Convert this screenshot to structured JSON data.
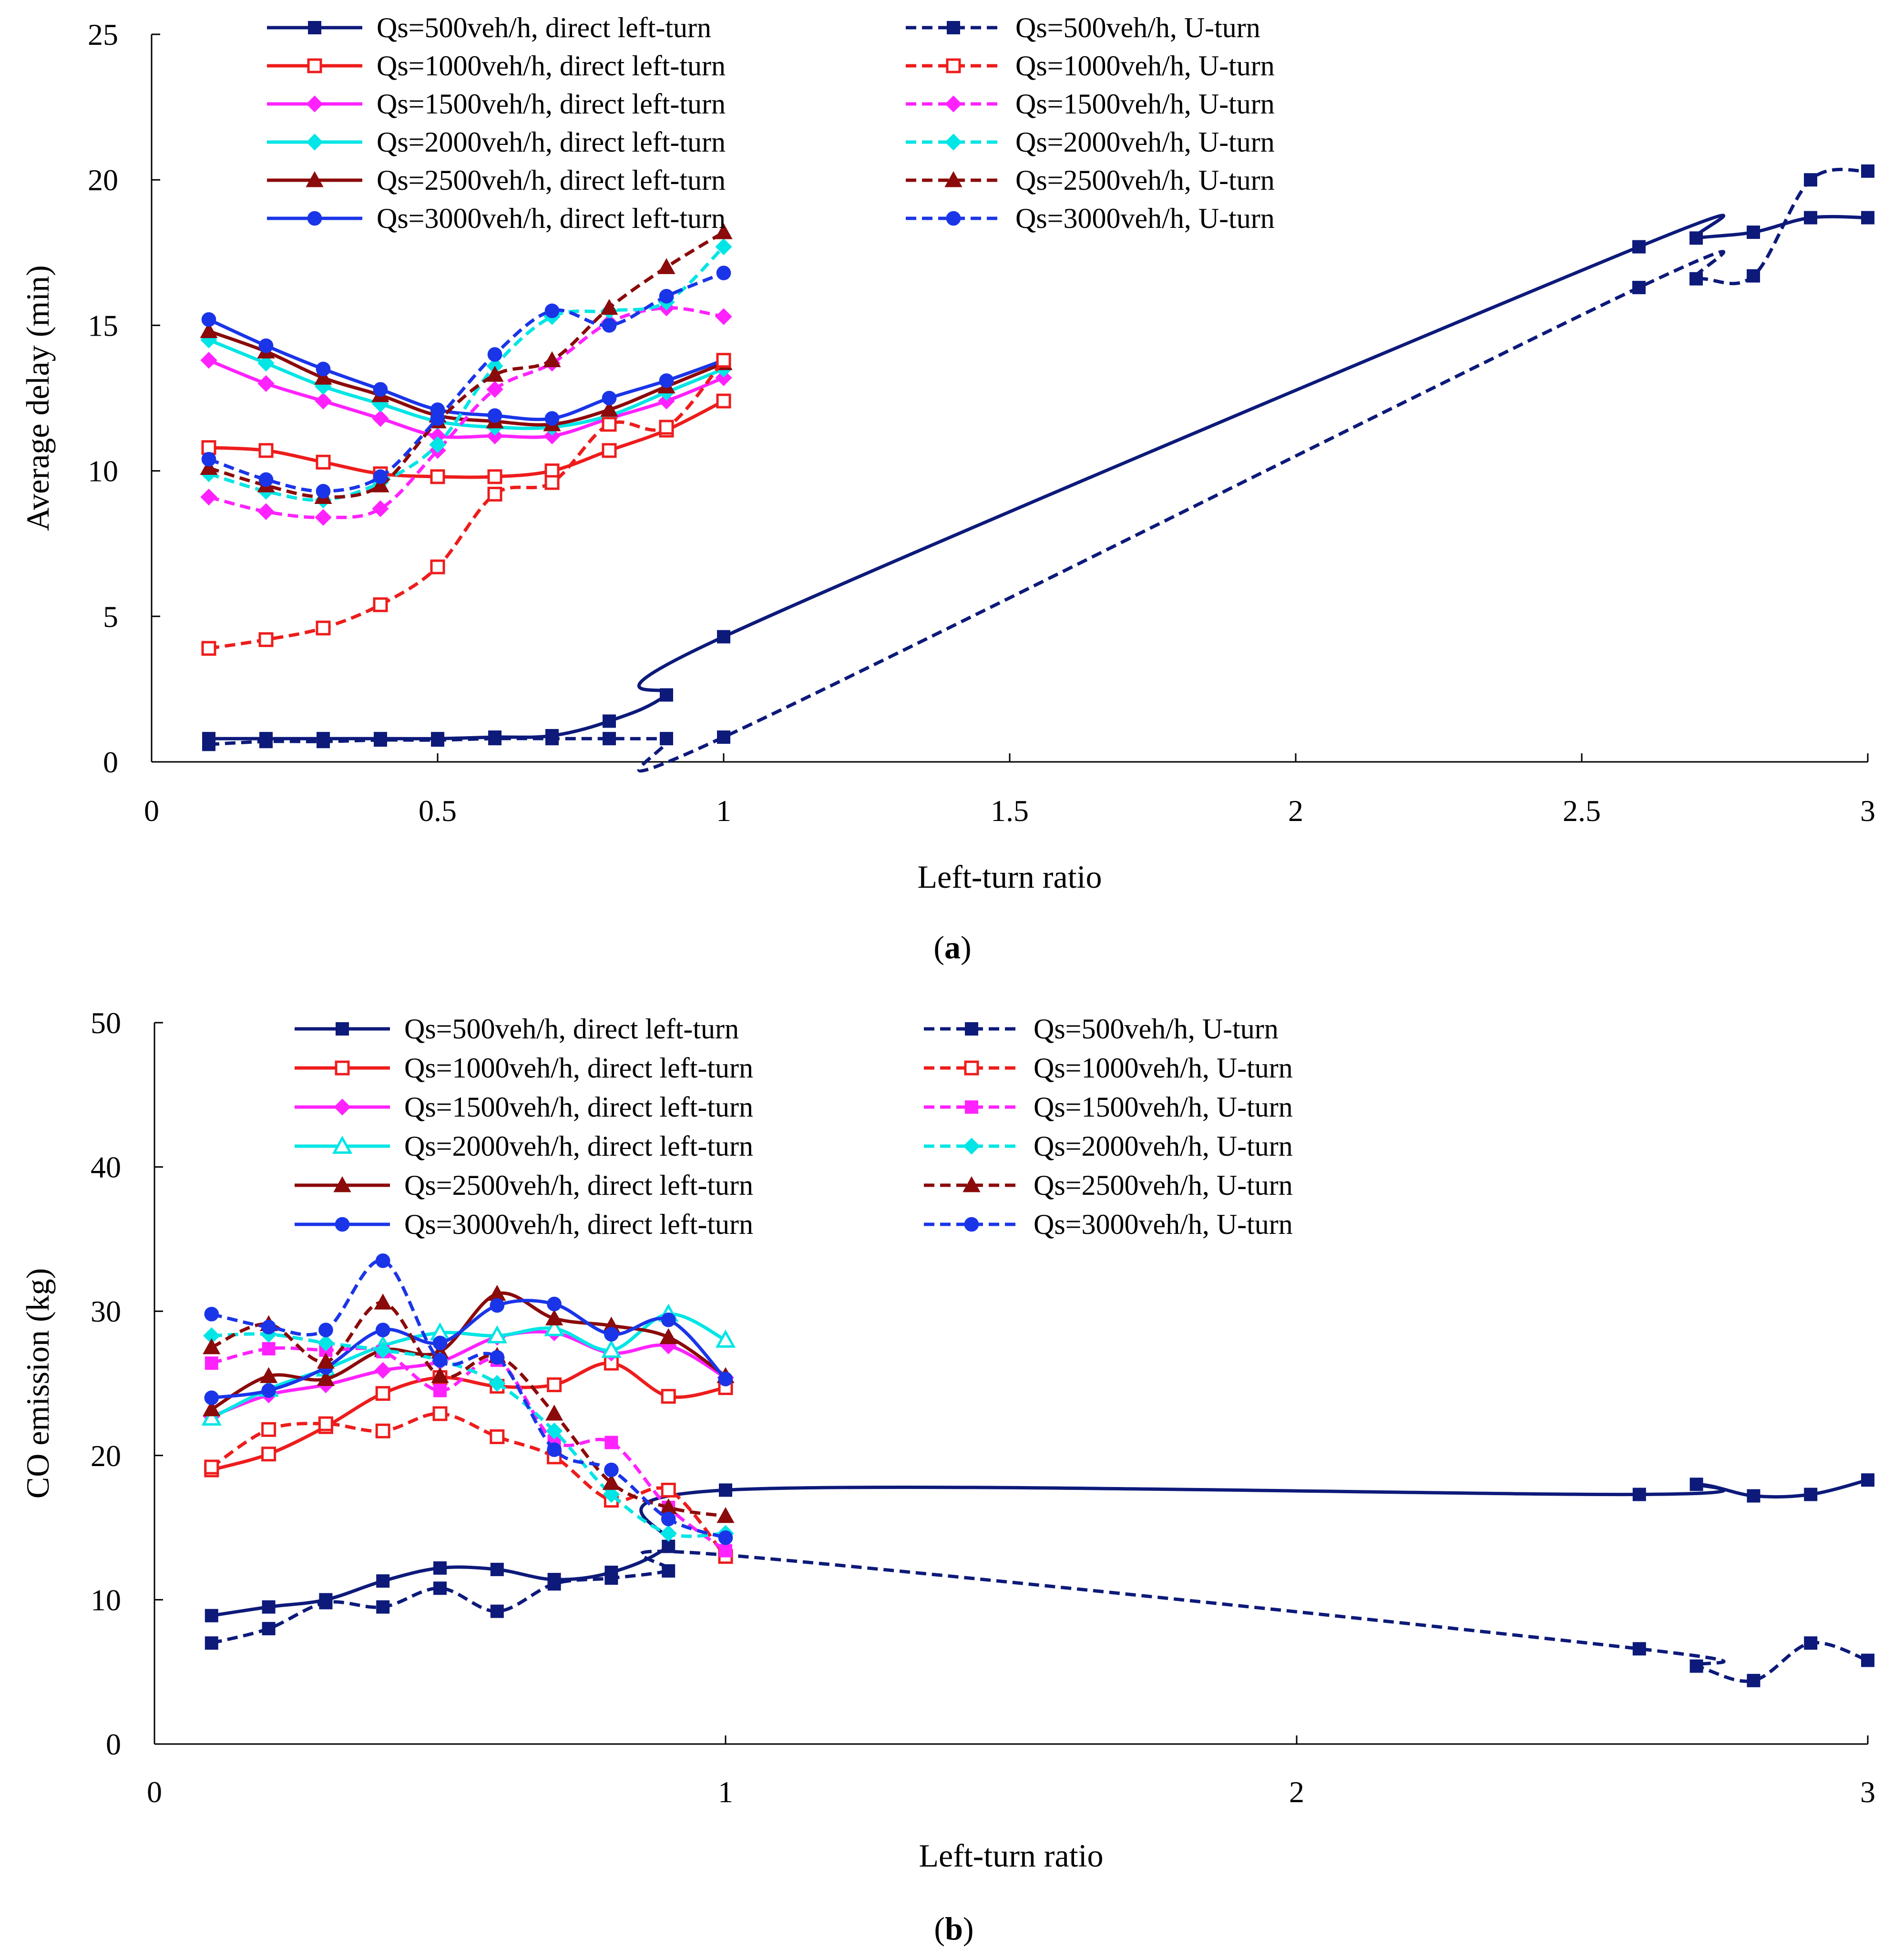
{
  "chart_data": [
    {
      "type": "line",
      "panel_label": "a",
      "xlabel": "Left-turn ratio",
      "ylabel": "Average delay (min)",
      "xlim": [
        0,
        3
      ],
      "ylim": [
        0,
        25
      ],
      "xticks": [
        0,
        0.5,
        1,
        1.5,
        2,
        2.5,
        3
      ],
      "xtick_labels": [
        "0",
        "0.5",
        "1",
        "1.5",
        "2",
        "2.5",
        "3"
      ],
      "yticks": [
        0,
        5,
        10,
        15,
        20,
        25
      ],
      "ytick_labels": [
        "0",
        "5",
        "10",
        "15",
        "20",
        "25"
      ],
      "legend": "top, two columns",
      "series": [
        {
          "name": "Qs=500veh/h, direct left-turn",
          "color": "#0d1a7a",
          "dash": "solid",
          "marker": "square",
          "x": [
            0.1,
            0.2,
            0.3,
            0.4,
            0.5,
            0.6,
            0.7,
            0.8,
            0.9,
            1.0,
            2.6,
            2.7,
            2.8,
            2.9,
            3.0
          ],
          "y": [
            0.8,
            0.8,
            0.8,
            0.8,
            0.8,
            0.85,
            0.9,
            1.4,
            2.3,
            4.3,
            17.7,
            18.0,
            18.2,
            18.7,
            18.7
          ]
        },
        {
          "name": "Qs=1000veh/h, direct left-turn",
          "color": "#ee1c1c",
          "dash": "solid",
          "marker": "square-open",
          "x": [
            0.1,
            0.2,
            0.3,
            0.4,
            0.5,
            0.6,
            0.7,
            0.8,
            0.9,
            1.0
          ],
          "y": [
            10.8,
            10.7,
            10.3,
            9.9,
            9.8,
            9.8,
            10.0,
            10.7,
            11.4,
            12.4
          ]
        },
        {
          "name": "Qs=1500veh/h, direct left-turn",
          "color": "#ff22ff",
          "dash": "solid",
          "marker": "diamond",
          "x": [
            0.1,
            0.2,
            0.3,
            0.4,
            0.5,
            0.6,
            0.7,
            0.8,
            0.9,
            1.0
          ],
          "y": [
            13.8,
            13.0,
            12.4,
            11.8,
            11.2,
            11.2,
            11.2,
            11.8,
            12.4,
            13.2
          ]
        },
        {
          "name": "Qs=2000veh/h, direct left-turn",
          "color": "#00e5e5",
          "dash": "solid",
          "marker": "diamond",
          "x": [
            0.1,
            0.2,
            0.3,
            0.4,
            0.5,
            0.6,
            0.7,
            0.8,
            0.9,
            1.0
          ],
          "y": [
            14.5,
            13.7,
            12.9,
            12.3,
            11.7,
            11.5,
            11.5,
            11.9,
            12.7,
            13.5
          ]
        },
        {
          "name": "Qs=2500veh/h, direct left-turn",
          "color": "#8b0a0a",
          "dash": "solid",
          "marker": "triangle",
          "x": [
            0.1,
            0.2,
            0.3,
            0.4,
            0.5,
            0.6,
            0.7,
            0.8,
            0.9,
            1.0
          ],
          "y": [
            14.8,
            14.1,
            13.2,
            12.6,
            11.9,
            11.7,
            11.6,
            12.1,
            12.9,
            13.7
          ]
        },
        {
          "name": "Qs=3000veh/h, direct left-turn",
          "color": "#1a35e8",
          "dash": "solid",
          "marker": "circle",
          "x": [
            0.1,
            0.2,
            0.3,
            0.4,
            0.5,
            0.6,
            0.7,
            0.8,
            0.9,
            1.0
          ],
          "y": [
            15.2,
            14.3,
            13.5,
            12.8,
            12.1,
            11.9,
            11.8,
            12.5,
            13.1,
            13.8
          ]
        },
        {
          "name": "Qs=500veh/h, U-turn",
          "color": "#0d1a7a",
          "dash": "dashed",
          "marker": "square",
          "x": [
            0.1,
            0.2,
            0.3,
            0.4,
            0.5,
            0.6,
            0.7,
            0.8,
            0.9,
            1.0,
            2.6,
            2.7,
            2.8,
            2.9,
            3.0
          ],
          "y": [
            0.6,
            0.7,
            0.7,
            0.75,
            0.75,
            0.8,
            0.8,
            0.8,
            0.8,
            0.85,
            16.3,
            16.6,
            16.7,
            20.0,
            20.3
          ]
        },
        {
          "name": "Qs=1000veh/h, U-turn",
          "color": "#ee1c1c",
          "dash": "dashed",
          "marker": "square-open",
          "x": [
            0.1,
            0.2,
            0.3,
            0.4,
            0.5,
            0.6,
            0.7,
            0.8,
            0.9,
            1.0
          ],
          "y": [
            3.9,
            4.2,
            4.6,
            5.4,
            6.7,
            9.2,
            9.6,
            11.6,
            11.5,
            13.8
          ]
        },
        {
          "name": "Qs=1500veh/h, U-turn",
          "color": "#ff22ff",
          "dash": "dashed",
          "marker": "diamond",
          "x": [
            0.1,
            0.2,
            0.3,
            0.4,
            0.5,
            0.6,
            0.7,
            0.8,
            0.9,
            1.0
          ],
          "y": [
            9.1,
            8.6,
            8.4,
            8.7,
            10.7,
            12.8,
            13.7,
            15.1,
            15.6,
            15.3
          ]
        },
        {
          "name": "Qs=2000veh/h, U-turn",
          "color": "#00e5e5",
          "dash": "dashed",
          "marker": "diamond",
          "x": [
            0.1,
            0.2,
            0.3,
            0.4,
            0.5,
            0.6,
            0.7,
            0.8,
            0.9,
            1.0
          ],
          "y": [
            9.9,
            9.3,
            9.0,
            9.6,
            10.9,
            13.6,
            15.3,
            15.5,
            15.8,
            17.7
          ]
        },
        {
          "name": "Qs=2500veh/h, U-turn",
          "color": "#8b0a0a",
          "dash": "dashed",
          "marker": "triangle",
          "x": [
            0.1,
            0.2,
            0.3,
            0.4,
            0.5,
            0.6,
            0.7,
            0.8,
            0.9,
            1.0
          ],
          "y": [
            10.1,
            9.5,
            9.1,
            9.5,
            11.7,
            13.3,
            13.8,
            15.6,
            17.0,
            18.2
          ]
        },
        {
          "name": "Qs=3000veh/h, U-turn",
          "color": "#1a35e8",
          "dash": "dashed",
          "marker": "circle",
          "x": [
            0.1,
            0.2,
            0.3,
            0.4,
            0.5,
            0.6,
            0.7,
            0.8,
            0.9,
            1.0
          ],
          "y": [
            10.4,
            9.7,
            9.3,
            9.8,
            11.8,
            14.0,
            15.5,
            15.0,
            16.0,
            16.8
          ]
        }
      ]
    },
    {
      "type": "line",
      "panel_label": "b",
      "xlabel": "Left-turn ratio",
      "ylabel": "CO emission (kg)",
      "xlim": [
        0,
        3
      ],
      "ylim": [
        0,
        50
      ],
      "xticks": [
        0,
        1,
        2,
        3
      ],
      "xtick_labels": [
        "0",
        "1",
        "2",
        "3"
      ],
      "yticks": [
        0,
        10,
        20,
        30,
        40,
        50
      ],
      "ytick_labels": [
        "0",
        "10",
        "20",
        "30",
        "40",
        "50"
      ],
      "legend": "top, two columns",
      "series": [
        {
          "name": "Qs=500veh/h, direct left-turn",
          "color": "#0d1a7a",
          "dash": "solid",
          "marker": "square",
          "x": [
            0.1,
            0.2,
            0.3,
            0.4,
            0.5,
            0.6,
            0.7,
            0.8,
            0.9,
            1.0,
            2.6,
            2.7,
            2.8,
            2.9,
            3.0
          ],
          "y": [
            8.9,
            9.5,
            10.0,
            11.3,
            12.2,
            12.1,
            11.4,
            11.9,
            13.7,
            17.6,
            17.3,
            18.0,
            17.2,
            17.3,
            18.3
          ]
        },
        {
          "name": "Qs=1000veh/h, direct left-turn",
          "color": "#ee1c1c",
          "dash": "solid",
          "marker": "square-open",
          "x": [
            0.1,
            0.2,
            0.3,
            0.4,
            0.5,
            0.6,
            0.7,
            0.8,
            0.9,
            1.0
          ],
          "y": [
            19.0,
            20.1,
            22.0,
            24.3,
            25.4,
            24.8,
            24.9,
            26.4,
            24.1,
            24.7
          ]
        },
        {
          "name": "Qs=1500veh/h, direct left-turn",
          "color": "#ff22ff",
          "dash": "solid",
          "marker": "diamond",
          "x": [
            0.1,
            0.2,
            0.3,
            0.4,
            0.5,
            0.6,
            0.7,
            0.8,
            0.9,
            1.0
          ],
          "y": [
            22.7,
            24.2,
            24.9,
            25.9,
            26.5,
            28.2,
            28.5,
            27.1,
            27.6,
            25.4
          ]
        },
        {
          "name": "Qs=2000veh/h, direct left-turn",
          "color": "#00e5e5",
          "dash": "solid",
          "marker": "triangle-open",
          "x": [
            0.1,
            0.2,
            0.3,
            0.4,
            0.5,
            0.6,
            0.7,
            0.8,
            0.9,
            1.0
          ],
          "y": [
            22.6,
            24.6,
            26.0,
            27.6,
            28.5,
            28.3,
            28.8,
            27.3,
            29.8,
            28.0
          ]
        },
        {
          "name": "Qs=2500veh/h, direct left-turn",
          "color": "#8b0a0a",
          "dash": "solid",
          "marker": "triangle",
          "x": [
            0.1,
            0.2,
            0.3,
            0.4,
            0.5,
            0.6,
            0.7,
            0.8,
            0.9,
            1.0
          ],
          "y": [
            23.2,
            25.5,
            25.3,
            27.3,
            27.2,
            31.2,
            29.5,
            29.0,
            28.2,
            25.5
          ]
        },
        {
          "name": "Qs=3000veh/h, direct left-turn",
          "color": "#1a35e8",
          "dash": "solid",
          "marker": "circle",
          "x": [
            0.1,
            0.2,
            0.3,
            0.4,
            0.5,
            0.6,
            0.7,
            0.8,
            0.9,
            1.0
          ],
          "y": [
            24.0,
            24.5,
            26.1,
            28.7,
            27.8,
            30.4,
            30.5,
            28.4,
            29.4,
            25.3
          ]
        },
        {
          "name": "Qs=500veh/h, U-turn",
          "color": "#0d1a7a",
          "dash": "dashed",
          "marker": "square",
          "x": [
            0.1,
            0.2,
            0.3,
            0.4,
            0.5,
            0.6,
            0.7,
            0.8,
            0.9,
            1.0,
            2.6,
            2.7,
            2.8,
            2.9,
            3.0
          ],
          "y": [
            7.0,
            8.0,
            9.8,
            9.5,
            10.8,
            9.2,
            11.1,
            11.5,
            12.0,
            13.1,
            6.6,
            5.4,
            4.4,
            7.0,
            5.8
          ]
        },
        {
          "name": "Qs=1000veh/h, U-turn",
          "color": "#ee1c1c",
          "dash": "dashed",
          "marker": "square-open",
          "x": [
            0.1,
            0.2,
            0.3,
            0.4,
            0.5,
            0.6,
            0.7,
            0.8,
            0.9,
            1.0
          ],
          "y": [
            19.2,
            21.8,
            22.2,
            21.7,
            22.9,
            21.3,
            19.9,
            16.9,
            17.6,
            13.0
          ]
        },
        {
          "name": "Qs=1500veh/h, U-turn",
          "color": "#ff22ff",
          "dash": "dashed",
          "marker": "square",
          "x": [
            0.1,
            0.2,
            0.3,
            0.4,
            0.5,
            0.6,
            0.7,
            0.8,
            0.9,
            1.0
          ],
          "y": [
            26.4,
            27.4,
            27.3,
            27.2,
            24.5,
            26.6,
            21.0,
            20.9,
            16.4,
            13.4
          ]
        },
        {
          "name": "Qs=2000veh/h, U-turn",
          "color": "#00e5e5",
          "dash": "dashed",
          "marker": "diamond",
          "x": [
            0.1,
            0.2,
            0.3,
            0.4,
            0.5,
            0.6,
            0.7,
            0.8,
            0.9,
            1.0
          ],
          "y": [
            28.3,
            28.4,
            27.8,
            27.3,
            26.6,
            25.0,
            21.7,
            17.3,
            14.6,
            14.6
          ]
        },
        {
          "name": "Qs=2500veh/h, U-turn",
          "color": "#8b0a0a",
          "dash": "dashed",
          "marker": "triangle",
          "x": [
            0.1,
            0.2,
            0.3,
            0.4,
            0.5,
            0.6,
            0.7,
            0.8,
            0.9,
            1.0
          ],
          "y": [
            27.5,
            29.1,
            26.5,
            30.6,
            25.5,
            26.9,
            22.9,
            18.1,
            16.4,
            15.8
          ]
        },
        {
          "name": "Qs=3000veh/h, U-turn",
          "color": "#1a35e8",
          "dash": "dashed",
          "marker": "circle",
          "x": [
            0.1,
            0.2,
            0.3,
            0.4,
            0.5,
            0.6,
            0.7,
            0.8,
            0.9,
            1.0
          ],
          "y": [
            29.8,
            28.9,
            28.7,
            33.5,
            26.6,
            26.8,
            20.4,
            19.0,
            15.6,
            14.3
          ]
        }
      ]
    }
  ]
}
